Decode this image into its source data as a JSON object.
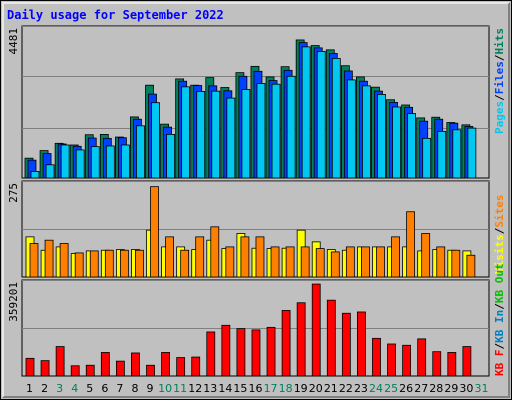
{
  "title": "Daily usage for September 2022",
  "colors": {
    "background": "#c0c0c0",
    "title": "#0000ff",
    "hits": "#00805c",
    "files": "#0040ff",
    "pages": "#00c8f0",
    "visits": "#ffff00",
    "sites": "#ff8000",
    "kbin": "#0080c0",
    "kbout": "#00c000",
    "kbf": "#ff0000",
    "weekend_label": "#00805c",
    "weekday_label": "#000000"
  },
  "legend_right": {
    "top": [
      "Pages",
      "Files",
      "Hits"
    ],
    "mid": [
      "Visits",
      "Sites"
    ],
    "bottom": [
      "KB F",
      "KB In",
      "KB Out"
    ]
  },
  "legend_separator": "/",
  "chart_data": [
    {
      "type": "bar",
      "panel": "hits-files-pages",
      "ymax_label": "4481",
      "ylim": [
        0,
        4481
      ],
      "categories": [
        "1",
        "2",
        "3",
        "4",
        "5",
        "6",
        "7",
        "8",
        "9",
        "10",
        "11",
        "12",
        "13",
        "14",
        "15",
        "16",
        "17",
        "18",
        "19",
        "20",
        "21",
        "22",
        "23",
        "24",
        "25",
        "26",
        "27",
        "28",
        "29",
        "30",
        "31"
      ],
      "weekend_days": [
        "3",
        "4",
        "10",
        "11",
        "17",
        "18",
        "24",
        "25",
        "31"
      ],
      "series": [
        {
          "name": "Hits",
          "values": [
            600,
            830,
            1050,
            1000,
            1310,
            1320,
            1240,
            1850,
            2810,
            1630,
            3000,
            2810,
            3040,
            2740,
            3190,
            3380,
            3060,
            3370,
            4180,
            4010,
            3880,
            3400,
            3060,
            2750,
            2370,
            2210,
            1820,
            1840,
            1680,
            1610,
            0
          ]
        },
        {
          "name": "Files",
          "values": [
            540,
            740,
            1030,
            960,
            1210,
            1200,
            1220,
            1780,
            2540,
            1540,
            2930,
            2800,
            2790,
            2640,
            3080,
            3230,
            2950,
            3260,
            4100,
            3940,
            3770,
            3240,
            2930,
            2630,
            2290,
            2140,
            1720,
            1780,
            1660,
            1560,
            0
          ]
        },
        {
          "name": "Pages",
          "values": [
            200,
            400,
            1000,
            850,
            950,
            970,
            1000,
            1580,
            2280,
            1320,
            2760,
            2620,
            2630,
            2420,
            2680,
            2860,
            2840,
            3080,
            3970,
            3830,
            3620,
            2970,
            2790,
            2530,
            2150,
            1950,
            1200,
            1410,
            1460,
            1510,
            0
          ]
        }
      ]
    },
    {
      "type": "bar",
      "panel": "visits-sites",
      "ymax_label": "275",
      "ylim": [
        0,
        275
      ],
      "categories": [
        "1",
        "2",
        "3",
        "4",
        "5",
        "6",
        "7",
        "8",
        "9",
        "10",
        "11",
        "12",
        "13",
        "14",
        "15",
        "16",
        "17",
        "18",
        "19",
        "20",
        "21",
        "22",
        "23",
        "24",
        "25",
        "26",
        "27",
        "28",
        "29",
        "30",
        "31"
      ],
      "series": [
        {
          "name": "Visits",
          "values": [
            120,
            80,
            90,
            70,
            78,
            80,
            82,
            82,
            140,
            90,
            90,
            82,
            110,
            85,
            130,
            86,
            85,
            86,
            140,
            105,
            82,
            80,
            90,
            90,
            90,
            90,
            78,
            82,
            80,
            78,
            0
          ]
        },
        {
          "name": "Sites",
          "values": [
            100,
            110,
            100,
            72,
            78,
            80,
            80,
            80,
            270,
            120,
            80,
            120,
            150,
            90,
            120,
            120,
            90,
            90,
            90,
            85,
            75,
            90,
            90,
            90,
            120,
            195,
            130,
            90,
            80,
            65,
            0
          ]
        }
      ]
    },
    {
      "type": "bar",
      "panel": "kbytes",
      "ymax_label": "359201",
      "ylim": [
        0,
        359201
      ],
      "categories": [
        "1",
        "2",
        "3",
        "4",
        "5",
        "6",
        "7",
        "8",
        "9",
        "10",
        "11",
        "12",
        "13",
        "14",
        "15",
        "16",
        "17",
        "18",
        "19",
        "20",
        "21",
        "22",
        "23",
        "24",
        "25",
        "26",
        "27",
        "28",
        "29",
        "30",
        "31"
      ],
      "series": [
        {
          "name": "KB F",
          "values": [
            69000,
            60000,
            115000,
            40000,
            42000,
            92000,
            58000,
            90000,
            42000,
            92000,
            72000,
            74000,
            172000,
            198000,
            185000,
            180000,
            190000,
            256000,
            286000,
            359000,
            296000,
            245000,
            250000,
            147000,
            125000,
            120000,
            145000,
            95000,
            92000,
            115000,
            0
          ]
        }
      ]
    }
  ],
  "x_labels": [
    "1",
    "2",
    "3",
    "4",
    "5",
    "6",
    "7",
    "8",
    "9",
    "10",
    "11",
    "12",
    "13",
    "14",
    "15",
    "16",
    "17",
    "18",
    "19",
    "20",
    "21",
    "22",
    "23",
    "24",
    "25",
    "26",
    "27",
    "28",
    "29",
    "30",
    "31"
  ]
}
